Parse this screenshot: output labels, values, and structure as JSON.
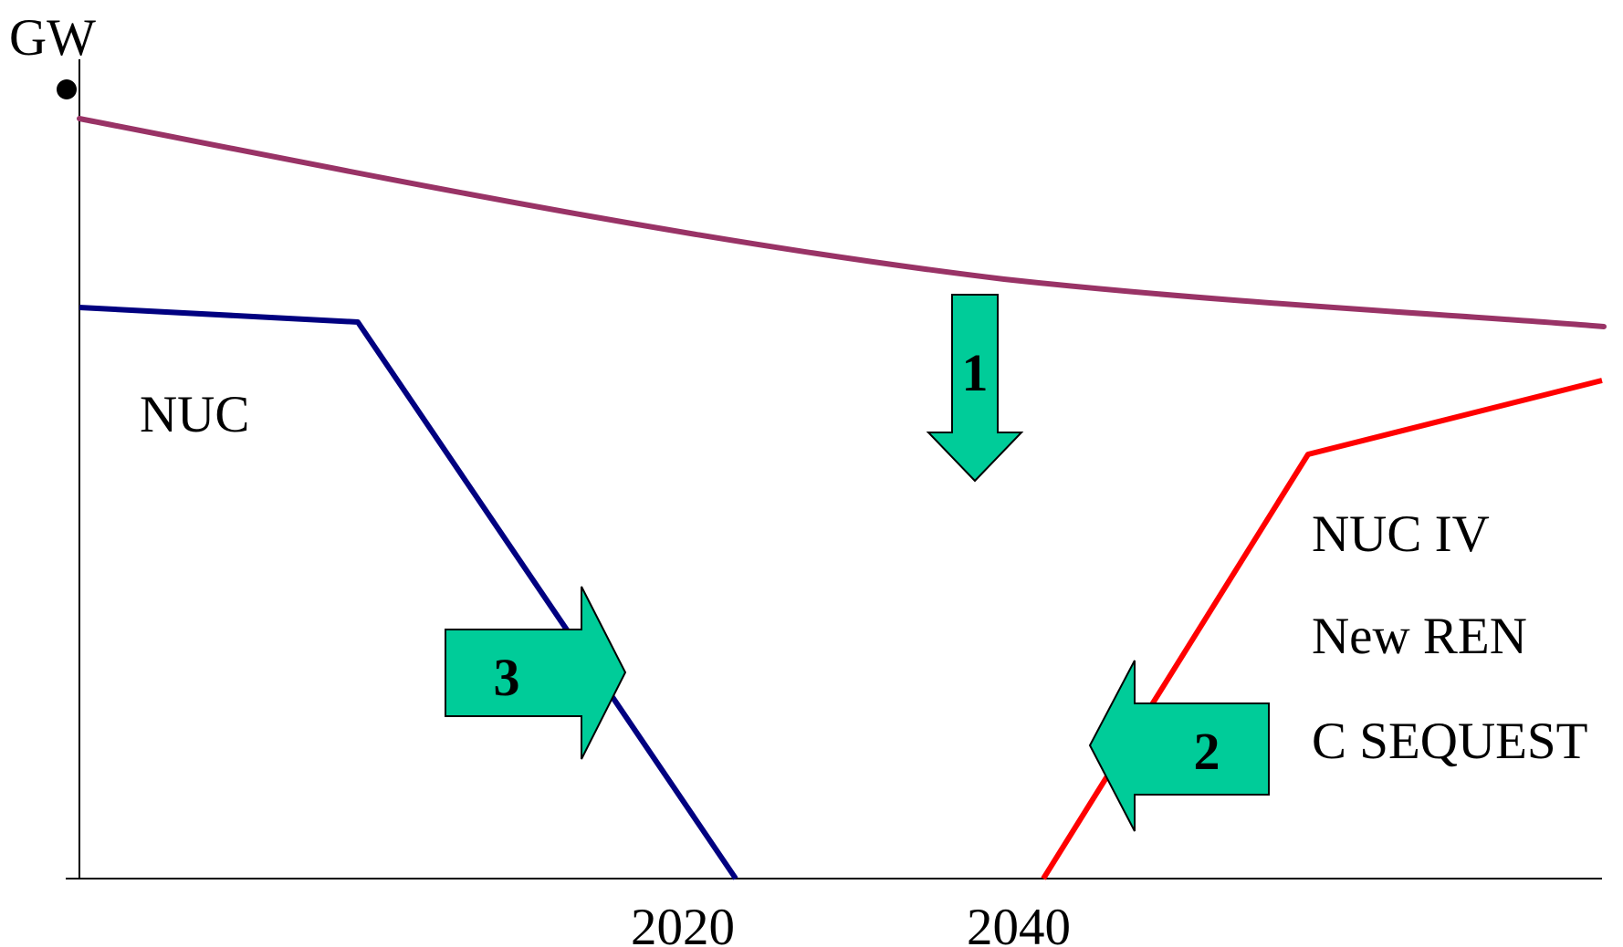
{
  "axis": {
    "y_unit_label": "GW",
    "x_tick_labels": [
      "2020",
      "2040"
    ]
  },
  "labels": {
    "existing": "NUC",
    "new_options": [
      "NUC IV",
      "New REN",
      "C SEQUEST"
    ]
  },
  "arrows": [
    {
      "number": "1",
      "direction": "down"
    },
    {
      "number": "2",
      "direction": "left"
    },
    {
      "number": "3",
      "direction": "right"
    }
  ],
  "colors": {
    "demand_line": "#993366",
    "existing_nuclear_line": "#000080",
    "new_capacity_line": "#ff0000",
    "arrow_fill": "#00cc99",
    "axis": "#000000"
  }
}
